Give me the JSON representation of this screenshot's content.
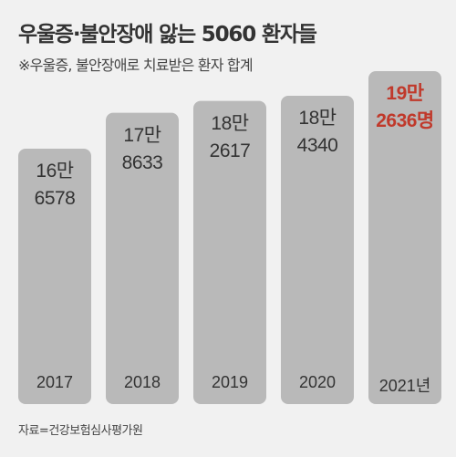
{
  "title": "우울증·불안장애 앓는 5060 환자들",
  "subtitle": "※우울증, 불안장애로 치료받은 환자 합계",
  "source": "자료=건강보험심사평가원",
  "colors": {
    "background": "#f1f1f1",
    "bar": "#b9b9b9",
    "highlight_text": "#c0392b",
    "text": "#333333"
  },
  "chart_data": {
    "type": "bar",
    "title": "우울증·불안장애 앓는 5060 환자들",
    "subtitle": "※우울증, 불안장애로 치료받은 환자 합계",
    "categories": [
      "2017",
      "2018",
      "2019",
      "2020",
      "2021년"
    ],
    "values": [
      166578,
      178633,
      182617,
      184340,
      192636
    ],
    "label_lines": [
      [
        "16만",
        "6578"
      ],
      [
        "17만",
        "8633"
      ],
      [
        "18만",
        "2617"
      ],
      [
        "18만",
        "4340"
      ],
      [
        "19만",
        "2636명"
      ]
    ],
    "highlight_index": 4,
    "xlabel": "",
    "ylabel": "",
    "grid": false,
    "legend": "none"
  }
}
